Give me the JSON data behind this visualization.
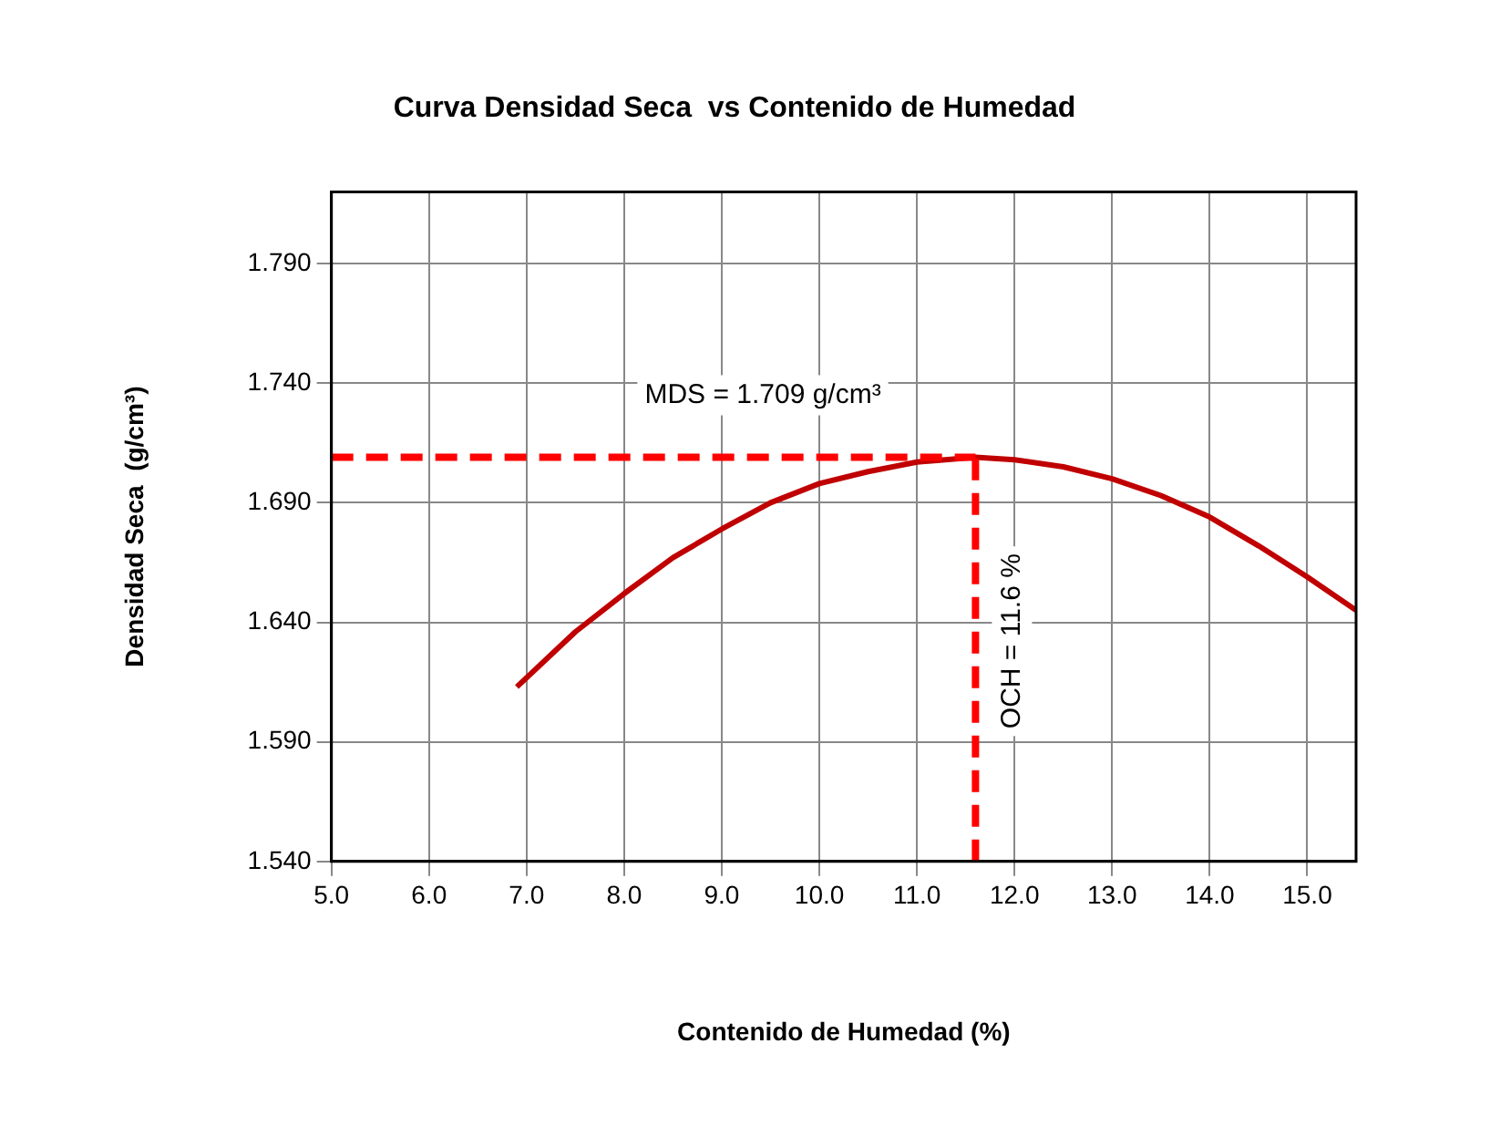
{
  "chart_data": {
    "type": "line",
    "title": "Curva Densidad Seca  vs Contenido de Humedad",
    "xlabel": "Contenido de Humedad (%)",
    "ylabel": "Densidad Seca  (g/cm³)",
    "x": [
      6.9,
      7.5,
      8.0,
      8.5,
      9.0,
      9.5,
      10.0,
      10.5,
      11.0,
      11.6,
      12.0,
      12.5,
      13.0,
      13.5,
      14.0,
      14.5,
      15.0,
      15.5
    ],
    "series": [
      {
        "color": "#c00000",
        "values": [
          1.613,
          1.636,
          1.652,
          1.667,
          1.679,
          1.69,
          1.698,
          1.703,
          1.707,
          1.709,
          1.708,
          1.705,
          1.7,
          1.693,
          1.684,
          1.672,
          1.659,
          1.645
        ]
      }
    ],
    "xlim": [
      5.0,
      15.5
    ],
    "xticks": [
      {
        "value": 5,
        "label": "5.0"
      },
      {
        "value": 6,
        "label": "6.0"
      },
      {
        "value": 7,
        "label": "7.0"
      },
      {
        "value": 8,
        "label": "8.0"
      },
      {
        "value": 9,
        "label": "9.0"
      },
      {
        "value": 10,
        "label": "10.0"
      },
      {
        "value": 11,
        "label": "11.0"
      },
      {
        "value": 12,
        "label": "12.0"
      },
      {
        "value": 13,
        "label": "13.0"
      },
      {
        "value": 14,
        "label": "14.0"
      },
      {
        "value": 15,
        "label": "15.0"
      }
    ],
    "ylim": [
      1.54,
      1.82
    ],
    "yticks": [
      {
        "value": 1.54,
        "label": "1.540"
      },
      {
        "value": 1.59,
        "label": "1.590"
      },
      {
        "value": 1.64,
        "label": "1.640"
      },
      {
        "value": 1.69,
        "label": "1.690"
      },
      {
        "value": 1.74,
        "label": "1.740"
      },
      {
        "value": 1.79,
        "label": "1.790"
      }
    ],
    "ref_lines": [
      {
        "axis": "y",
        "value": 1.709,
        "label": "MDS = 1.709 g/cm³",
        "color": "#ff0000",
        "line_style": "dashed"
      },
      {
        "axis": "x",
        "value": 11.6,
        "label": "OCH = 11.6 %",
        "color": "#ff0000",
        "line_style": "dashed"
      }
    ],
    "grid": true,
    "legend": false,
    "marker": "none",
    "line_style": "solid"
  }
}
